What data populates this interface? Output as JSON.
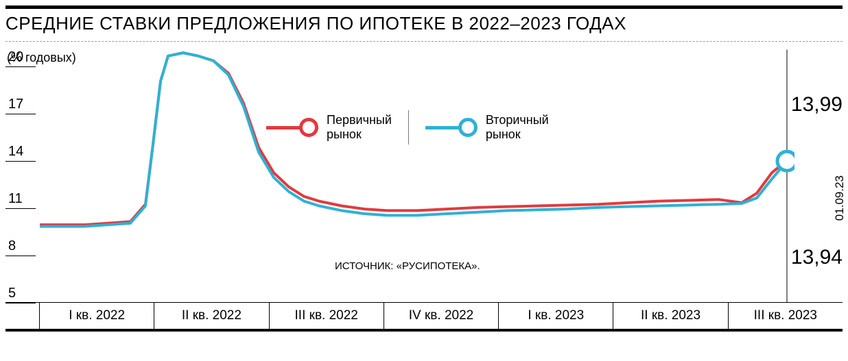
{
  "title": "СРЕДНИЕ СТАВКИ ПРЕДЛОЖЕНИЯ ПО ИПОТЕКЕ В 2022–2023 ГОДАХ",
  "y_axis_label": "(% годовых)",
  "source": "ИСТОЧНИК: «РУСИПОТЕКА».",
  "end_date_label": "01.09.23",
  "end_value_primary": "13,99",
  "end_value_secondary": "13,94",
  "chart": {
    "type": "line",
    "background_color": "#ffffff",
    "title_fontsize": 26,
    "label_fontsize": 19,
    "tick_fontsize": 20,
    "ylim": [
      5,
      21.5
    ],
    "y_ticks": [
      5,
      8,
      11,
      14,
      17,
      20
    ],
    "x_categories": [
      "I кв. 2022",
      "II кв. 2022",
      "III кв. 2022",
      "IV кв. 2022",
      "I кв. 2023",
      "II кв. 2023",
      "III кв. 2023"
    ],
    "series": [
      {
        "name": "Первичный рынок",
        "color": "#e23a3e",
        "line_width": 4,
        "marker_end": {
          "shape": "circle",
          "radius": 12,
          "stroke_width": 5,
          "fill": "#ffffff"
        },
        "points": [
          [
            0.0,
            9.9
          ],
          [
            0.03,
            9.9
          ],
          [
            0.06,
            9.9
          ],
          [
            0.09,
            10.0
          ],
          [
            0.12,
            10.1
          ],
          [
            0.14,
            11.2
          ],
          [
            0.15,
            15.0
          ],
          [
            0.16,
            19.0
          ],
          [
            0.17,
            20.6
          ],
          [
            0.19,
            20.8
          ],
          [
            0.21,
            20.6
          ],
          [
            0.23,
            20.3
          ],
          [
            0.25,
            19.5
          ],
          [
            0.27,
            17.6
          ],
          [
            0.29,
            14.8
          ],
          [
            0.31,
            13.2
          ],
          [
            0.33,
            12.3
          ],
          [
            0.35,
            11.7
          ],
          [
            0.37,
            11.4
          ],
          [
            0.4,
            11.1
          ],
          [
            0.43,
            10.9
          ],
          [
            0.46,
            10.8
          ],
          [
            0.5,
            10.8
          ],
          [
            0.54,
            10.9
          ],
          [
            0.58,
            11.0
          ],
          [
            0.62,
            11.05
          ],
          [
            0.66,
            11.1
          ],
          [
            0.7,
            11.15
          ],
          [
            0.74,
            11.2
          ],
          [
            0.78,
            11.3
          ],
          [
            0.82,
            11.4
          ],
          [
            0.86,
            11.45
          ],
          [
            0.9,
            11.5
          ],
          [
            0.93,
            11.3
          ],
          [
            0.95,
            11.9
          ],
          [
            0.97,
            13.2
          ],
          [
            0.99,
            13.99
          ]
        ]
      },
      {
        "name": "Вторичный рынок",
        "color": "#2eb1d6",
        "line_width": 4,
        "marker_end": {
          "shape": "circle",
          "radius": 14,
          "stroke_width": 5,
          "fill": "#ffffff"
        },
        "points": [
          [
            0.0,
            9.8
          ],
          [
            0.03,
            9.8
          ],
          [
            0.06,
            9.8
          ],
          [
            0.09,
            9.9
          ],
          [
            0.12,
            10.0
          ],
          [
            0.14,
            11.1
          ],
          [
            0.15,
            15.0
          ],
          [
            0.16,
            19.0
          ],
          [
            0.17,
            20.6
          ],
          [
            0.19,
            20.8
          ],
          [
            0.21,
            20.6
          ],
          [
            0.23,
            20.3
          ],
          [
            0.25,
            19.4
          ],
          [
            0.27,
            17.4
          ],
          [
            0.29,
            14.5
          ],
          [
            0.31,
            12.9
          ],
          [
            0.33,
            12.0
          ],
          [
            0.35,
            11.4
          ],
          [
            0.37,
            11.1
          ],
          [
            0.4,
            10.8
          ],
          [
            0.43,
            10.6
          ],
          [
            0.46,
            10.5
          ],
          [
            0.5,
            10.5
          ],
          [
            0.54,
            10.6
          ],
          [
            0.58,
            10.7
          ],
          [
            0.62,
            10.8
          ],
          [
            0.66,
            10.85
          ],
          [
            0.7,
            10.9
          ],
          [
            0.74,
            11.0
          ],
          [
            0.78,
            11.05
          ],
          [
            0.82,
            11.1
          ],
          [
            0.86,
            11.15
          ],
          [
            0.9,
            11.2
          ],
          [
            0.93,
            11.25
          ],
          [
            0.95,
            11.6
          ],
          [
            0.97,
            12.8
          ],
          [
            0.99,
            13.94
          ]
        ]
      }
    ],
    "legend": {
      "items": [
        {
          "label": "Первичный\nрынок",
          "color": "#e23a3e"
        },
        {
          "label": "Вторичный\nрынок",
          "color": "#2eb1d6"
        }
      ]
    }
  }
}
